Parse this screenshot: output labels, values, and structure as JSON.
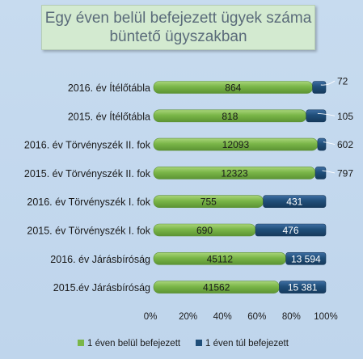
{
  "chart_data": {
    "type": "bar",
    "orientation": "horizontal",
    "stacked": "percent",
    "title": "Egy éven belül befejezett ügyek száma büntető ügyszakban",
    "categories": [
      "2016. év Ítélőtábla",
      "2015. év Ítélőtábla",
      "2016. év Törvényszék II. fok",
      "2015. év Törvényszék II. fok",
      "2016. év Törvényszék I. fok",
      "2015. év Törvényszék I. fok",
      "2016. év Járásbíróság",
      "2015.év Járásbíróság"
    ],
    "series": [
      {
        "name": "1 éven belül befejezett",
        "color": "#7ab648",
        "values": [
          864,
          818,
          12093,
          12323,
          755,
          690,
          45112,
          41562
        ],
        "labels": [
          "864",
          "818",
          "12093",
          "12323",
          "755",
          "690",
          "45112",
          "41562"
        ]
      },
      {
        "name": "1 éven túl befejezett",
        "color": "#1f4e79",
        "values": [
          72,
          105,
          602,
          797,
          431,
          476,
          13594,
          15381
        ],
        "labels": [
          "72",
          "105",
          "602",
          "797",
          "431",
          "476",
          "13 594",
          "15 381"
        ]
      }
    ],
    "xlim": [
      0,
      100
    ],
    "xticks": [
      "0%",
      "20%",
      "40%",
      "60%",
      "80%",
      "100%"
    ],
    "grid": false,
    "legend_position": "bottom"
  }
}
